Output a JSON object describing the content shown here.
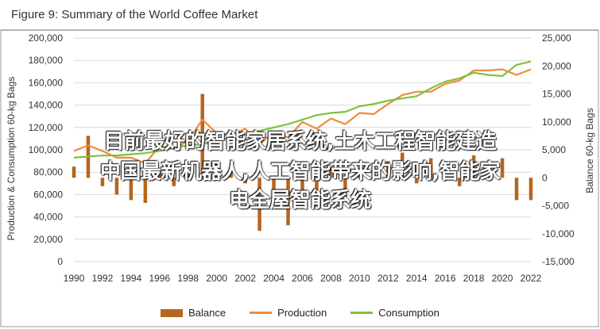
{
  "chart_data": {
    "type": "bar+line",
    "title": "Figure 9: Summary of the World Coffee Market",
    "ylabel_left": "Production & Consumption 60-kg Bags",
    "ylabel_right": "Balance 60-kg Bags",
    "ylim_left": [
      0,
      200000
    ],
    "ylim_right": [
      -15000,
      25000
    ],
    "yticks_left": [
      "0",
      "20,000",
      "40,000",
      "60,000",
      "80,000",
      "100,000",
      "120,000",
      "140,000",
      "160,000",
      "180,000",
      "200,000"
    ],
    "yticks_right": [
      "-15,000",
      "-10,000",
      "-5,000",
      "0",
      "5,000",
      "10,000",
      "15,000",
      "20,000",
      "25,000"
    ],
    "x": [
      1990,
      1991,
      1992,
      1993,
      1994,
      1995,
      1996,
      1997,
      1998,
      1999,
      2000,
      2001,
      2002,
      2003,
      2004,
      2005,
      2006,
      2007,
      2008,
      2009,
      2010,
      2011,
      2012,
      2013,
      2014,
      2015,
      2016,
      2017,
      2018,
      2019,
      2020,
      2021,
      2022
    ],
    "xticks": [
      "1990",
      "1992",
      "1994",
      "1996",
      "1998",
      "2000",
      "2002",
      "2004",
      "2006",
      "2008",
      "2010",
      "2012",
      "2014",
      "2016",
      "2018",
      "2020",
      "2022"
    ],
    "series": [
      {
        "name": "Balance",
        "type": "bar",
        "axis": "right",
        "color": "#b5651d",
        "values": [
          2000,
          7500,
          -1500,
          -3000,
          -4000,
          -4500,
          1000,
          -1500,
          1500,
          15000,
          3000,
          2000,
          -1000,
          -9500,
          -4000,
          -8500,
          -2500,
          -5000,
          2000,
          -3500,
          1000,
          2000,
          3000,
          4500,
          -1000,
          3500,
          -500,
          -1500,
          4000,
          -500,
          3500,
          -4000,
          -4000
        ]
      },
      {
        "name": "Production",
        "type": "line",
        "axis": "left",
        "color": "#f08a3c",
        "values": [
          99000,
          104000,
          99000,
          93000,
          93000,
          88000,
          103000,
          101000,
          108000,
          127000,
          115000,
          113000,
          119000,
          105000,
          116000,
          111000,
          125000,
          119000,
          128000,
          123000,
          133000,
          132000,
          141000,
          149000,
          152000,
          152000,
          159000,
          162000,
          171000,
          171000,
          172000,
          167000,
          172000
        ]
      },
      {
        "name": "Consumption",
        "type": "line",
        "axis": "left",
        "color": "#7cc242",
        "values": [
          93000,
          94000,
          95000,
          95000,
          96000,
          97000,
          99000,
          102000,
          104000,
          105000,
          108000,
          111000,
          114000,
          117000,
          120000,
          123000,
          127000,
          131000,
          133000,
          134000,
          139000,
          141000,
          144000,
          146000,
          148000,
          155000,
          161000,
          164000,
          169000,
          167000,
          166000,
          176000,
          179000
        ]
      }
    ]
  },
  "overlay": {
    "line1": "目前最好的智能家居系统,土木工程智能建造",
    "line2": "中国最新机器人,人工智能带来的影响,智能家",
    "line3": "电全屋智能系统"
  }
}
